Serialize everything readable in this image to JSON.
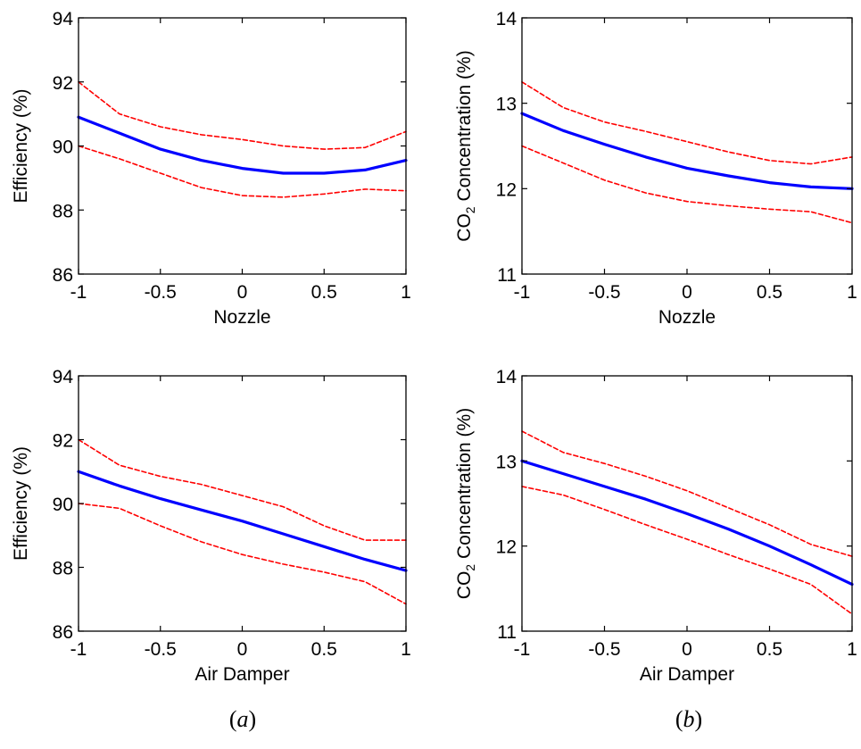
{
  "figure": {
    "caption_a_open": "(",
    "caption_a_letter": "a",
    "caption_a_close": ")",
    "caption_b_open": "(",
    "caption_b_letter": "b",
    "caption_b_close": ")",
    "colors": {
      "mean": "#0000ff",
      "bounds": "#ff0000",
      "axes": "#000000",
      "background": "#ffffff"
    }
  },
  "chart_data": [
    {
      "type": "line",
      "panel": "a",
      "xlabel": "Nozzle",
      "ylabel": "Efficiency (%)",
      "xlim": [
        -1,
        1
      ],
      "ylim": [
        86,
        94
      ],
      "xticks": [
        -1,
        -0.5,
        0,
        0.5,
        1
      ],
      "xtick_labels": [
        "-1",
        "-0.5",
        "0",
        "0.5",
        "1"
      ],
      "yticks": [
        86,
        88,
        90,
        92,
        94
      ],
      "ytick_labels": [
        "86",
        "88",
        "90",
        "92",
        "94"
      ],
      "grid": false,
      "x": [
        -1,
        -0.75,
        -0.5,
        -0.25,
        0,
        0.25,
        0.5,
        0.75,
        1
      ],
      "series": [
        {
          "values": [
            90.9,
            90.4,
            89.9,
            89.55,
            89.3,
            89.15,
            89.15,
            89.25,
            89.55
          ],
          "style": "solid"
        },
        {
          "values": [
            92.0,
            91.0,
            90.6,
            90.35,
            90.2,
            90.0,
            89.9,
            89.95,
            90.45
          ],
          "style": "dashed"
        },
        {
          "values": [
            90.0,
            89.6,
            89.15,
            88.7,
            88.45,
            88.4,
            88.5,
            88.65,
            88.6
          ],
          "style": "dashed"
        }
      ]
    },
    {
      "type": "line",
      "panel": "b",
      "xlabel": "Nozzle",
      "ylabel_main": "CO",
      "ylabel_sub": "2",
      "ylabel_rest": " Concentration (%)",
      "xlim": [
        -1,
        1
      ],
      "ylim": [
        11,
        14
      ],
      "xticks": [
        -1,
        -0.5,
        0,
        0.5,
        1
      ],
      "xtick_labels": [
        "-1",
        "-0.5",
        "0",
        "0.5",
        "1"
      ],
      "yticks": [
        11,
        12,
        13,
        14
      ],
      "ytick_labels": [
        "11",
        "12",
        "13",
        "14"
      ],
      "grid": false,
      "x": [
        -1,
        -0.75,
        -0.5,
        -0.25,
        0,
        0.25,
        0.5,
        0.75,
        1
      ],
      "series": [
        {
          "values": [
            12.88,
            12.68,
            12.52,
            12.37,
            12.24,
            12.15,
            12.07,
            12.02,
            12.0
          ],
          "style": "solid"
        },
        {
          "values": [
            13.25,
            12.95,
            12.78,
            12.67,
            12.55,
            12.43,
            12.33,
            12.29,
            12.37
          ],
          "style": "dashed"
        },
        {
          "values": [
            12.5,
            12.3,
            12.1,
            11.95,
            11.85,
            11.8,
            11.76,
            11.73,
            11.6
          ],
          "style": "dashed"
        }
      ]
    },
    {
      "type": "line",
      "panel": "a",
      "xlabel": "Air Damper",
      "ylabel": "Efficiency (%)",
      "xlim": [
        -1,
        1
      ],
      "ylim": [
        86,
        94
      ],
      "xticks": [
        -1,
        -0.5,
        0,
        0.5,
        1
      ],
      "xtick_labels": [
        "-1",
        "-0.5",
        "0",
        "0.5",
        "1"
      ],
      "yticks": [
        86,
        88,
        90,
        92,
        94
      ],
      "ytick_labels": [
        "86",
        "88",
        "90",
        "92",
        "94"
      ],
      "grid": false,
      "x": [
        -1,
        -0.75,
        -0.5,
        -0.25,
        0,
        0.25,
        0.5,
        0.75,
        1
      ],
      "series": [
        {
          "values": [
            91.0,
            90.55,
            90.15,
            89.8,
            89.45,
            89.05,
            88.65,
            88.25,
            87.9
          ],
          "style": "solid"
        },
        {
          "values": [
            92.0,
            91.2,
            90.85,
            90.6,
            90.25,
            89.9,
            89.3,
            88.85,
            88.85
          ],
          "style": "dashed"
        },
        {
          "values": [
            90.0,
            89.85,
            89.3,
            88.8,
            88.4,
            88.1,
            87.85,
            87.55,
            86.85
          ],
          "style": "dashed"
        }
      ]
    },
    {
      "type": "line",
      "panel": "b",
      "xlabel": "Air Damper",
      "ylabel_main": "CO",
      "ylabel_sub": "2",
      "ylabel_rest": " Concentration (%)",
      "xlim": [
        -1,
        1
      ],
      "ylim": [
        11,
        14
      ],
      "xticks": [
        -1,
        -0.5,
        0,
        0.5,
        1
      ],
      "xtick_labels": [
        "-1",
        "-0.5",
        "0",
        "0.5",
        "1"
      ],
      "yticks": [
        11,
        12,
        13,
        14
      ],
      "ytick_labels": [
        "11",
        "12",
        "13",
        "14"
      ],
      "grid": false,
      "x": [
        -1,
        -0.75,
        -0.5,
        -0.25,
        0,
        0.25,
        0.5,
        0.75,
        1
      ],
      "series": [
        {
          "values": [
            13.0,
            12.85,
            12.7,
            12.55,
            12.38,
            12.2,
            12.0,
            11.78,
            11.55
          ],
          "style": "solid"
        },
        {
          "values": [
            13.35,
            13.1,
            12.97,
            12.82,
            12.65,
            12.45,
            12.25,
            12.02,
            11.88
          ],
          "style": "dashed"
        },
        {
          "values": [
            12.7,
            12.6,
            12.43,
            12.25,
            12.08,
            11.9,
            11.73,
            11.55,
            11.2
          ],
          "style": "dashed"
        }
      ]
    }
  ]
}
